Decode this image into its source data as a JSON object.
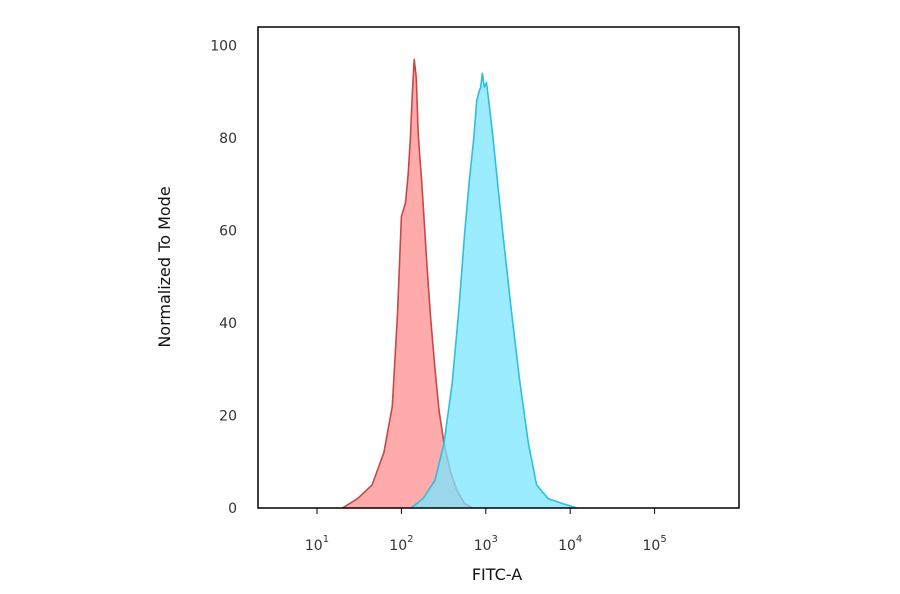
{
  "chart_data": {
    "type": "area",
    "title": "",
    "xlabel": "FITC-A",
    "ylabel": "Normalized To Mode",
    "x_scale": "log",
    "xlim": [
      2,
      1000000
    ],
    "ylim": [
      0,
      104
    ],
    "x_ticks": [
      {
        "value": 10,
        "base": "10",
        "exp": "1"
      },
      {
        "value": 100,
        "base": "10",
        "exp": "2"
      },
      {
        "value": 1000,
        "base": "10",
        "exp": "3"
      },
      {
        "value": 10000,
        "base": "10",
        "exp": "4"
      },
      {
        "value": 100000,
        "base": "10",
        "exp": "5"
      }
    ],
    "y_ticks": [
      "0",
      "20",
      "40",
      "60",
      "80",
      "100"
    ],
    "grid": false,
    "series": [
      {
        "color_fill": "#ff9c9c",
        "color_line": "#c84848",
        "x": [
          20,
          30,
          45,
          62,
          78,
          90,
          100,
          112,
          120,
          128,
          135,
          142,
          150,
          158,
          165,
          175,
          185,
          200,
          220,
          250,
          280,
          320,
          380,
          450,
          560,
          700,
          1000
        ],
        "y": [
          0,
          2,
          5,
          12,
          22,
          42,
          63,
          66,
          72,
          80,
          90,
          97,
          93,
          81,
          76,
          70,
          63,
          53,
          42,
          30,
          21,
          14,
          8,
          4,
          1,
          0,
          0
        ]
      },
      {
        "color_fill": "#79e6ff",
        "color_line": "#2fbede",
        "x": [
          130,
          180,
          250,
          320,
          400,
          480,
          560,
          640,
          720,
          780,
          830,
          870,
          910,
          960,
          1020,
          1100,
          1200,
          1350,
          1600,
          2000,
          2500,
          3200,
          4000,
          5500,
          8000,
          12000
        ],
        "y": [
          0,
          2,
          6,
          14,
          27,
          43,
          59,
          71,
          80,
          88,
          90,
          91,
          94,
          91,
          92,
          87,
          81,
          72,
          59,
          43,
          28,
          14,
          5,
          2,
          1,
          0
        ]
      }
    ]
  }
}
